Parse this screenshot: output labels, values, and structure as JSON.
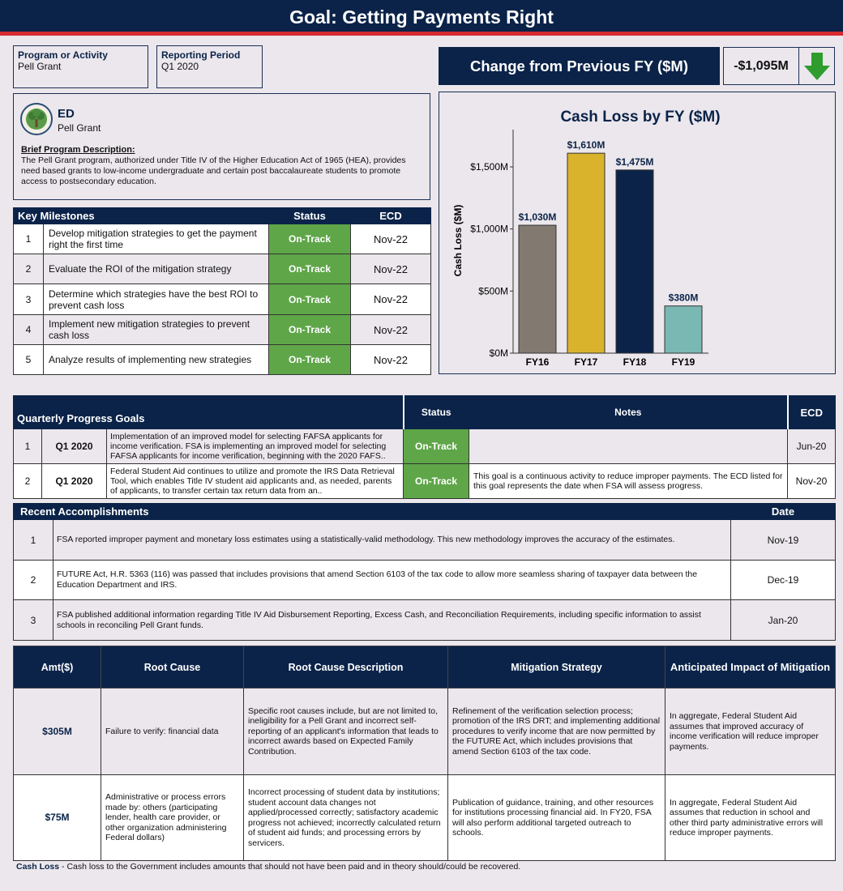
{
  "title": "Goal: Getting Payments Right",
  "program": {
    "label": "Program or Activity",
    "value": "Pell Grant"
  },
  "period": {
    "label": "Reporting Period",
    "value": "Q1 2020"
  },
  "change": {
    "label": "Change from Previous FY ($M)",
    "value": "-$1,095M",
    "direction": "down",
    "arrow_color": "#2e9d2e"
  },
  "agency": {
    "name": "ED",
    "program": "Pell Grant",
    "desc_label": "Brief Program Description:",
    "description": "The Pell Grant program, authorized under Title IV of the Higher Education Act of 1965 (HEA), provides need based grants to low-income undergraduate and certain post baccalaureate students to promote access to postsecondary education."
  },
  "milestones": {
    "headers": [
      "Key Milestones",
      "Status",
      "ECD"
    ],
    "rows": [
      {
        "num": "1",
        "text": "Develop mitigation strategies to get the payment right the first time",
        "status": "On-Track",
        "ecd": "Nov-22"
      },
      {
        "num": "2",
        "text": "Evaluate the ROI of the mitigation strategy",
        "status": "On-Track",
        "ecd": "Nov-22"
      },
      {
        "num": "3",
        "text": "Determine which strategies have the best ROI to prevent cash loss",
        "status": "On-Track",
        "ecd": "Nov-22"
      },
      {
        "num": "4",
        "text": "Implement new mitigation strategies to prevent cash loss",
        "status": "On-Track",
        "ecd": "Nov-22"
      },
      {
        "num": "5",
        "text": "Analyze results of implementing new strategies",
        "status": "On-Track",
        "ecd": "Nov-22"
      }
    ]
  },
  "chart_data": {
    "type": "bar",
    "title": "Cash Loss by FY ($M)",
    "ylabel": "Cash Loss ($M)",
    "categories": [
      "FY16",
      "FY17",
      "FY18",
      "FY19"
    ],
    "values": [
      1030,
      1610,
      1475,
      380
    ],
    "data_labels": [
      "$1,030M",
      "$1,610M",
      "$1,475M",
      "$380M"
    ],
    "colors": [
      "#827a70",
      "#d9b32c",
      "#0b2349",
      "#7ab8b4"
    ],
    "yticks": [
      0,
      500,
      1000,
      1500
    ],
    "ytick_labels": [
      "$0M",
      "$500M",
      "$1,000M",
      "$1,500M"
    ],
    "ylim": [
      0,
      1800
    ],
    "legend": "none"
  },
  "quarterly": {
    "headers": [
      "Quarterly Progress Goals",
      "Status",
      "Notes",
      "ECD"
    ],
    "rows": [
      {
        "num": "1",
        "quarter": "Q1 2020",
        "text": "Implementation of an improved model for selecting FAFSA applicants for income verification. FSA is implementing an improved model for selecting FAFSA applicants for income verification, beginning with the 2020 FAFS..",
        "status": "On-Track",
        "notes": "",
        "ecd": "Jun-20"
      },
      {
        "num": "2",
        "quarter": "Q1 2020",
        "text": "Federal Student Aid continues to utilize and promote the IRS Data Retrieval Tool, which enables Title IV student aid applicants and, as needed, parents of applicants, to transfer certain tax return data from an..",
        "status": "On-Track",
        "notes": "This goal is a continuous activity to reduce improper payments. The ECD listed for this goal represents the date when FSA will assess progress.",
        "ecd": "Nov-20"
      }
    ]
  },
  "accomplishments": {
    "headers": [
      "Recent  Accomplishments",
      "Date"
    ],
    "rows": [
      {
        "num": "1",
        "text": "FSA reported improper payment and monetary loss estimates using a statistically-valid methodology. This new methodology improves the accuracy of the estimates.",
        "date": "Nov-19"
      },
      {
        "num": "2",
        "text": "FUTURE Act, H.R. 5363 (116) was passed that includes provisions that amend Section 6103 of the tax code to allow more seamless sharing of taxpayer data between the Education Department and IRS.",
        "date": "Dec-19"
      },
      {
        "num": "3",
        "text": "FSA published additional information regarding Title IV Aid Disbursement Reporting, Excess Cash, and Reconciliation Requirements, including specific information to assist schools in reconciling Pell Grant funds.",
        "date": "Jan-20"
      }
    ]
  },
  "root_causes": {
    "headers": [
      "Amt($)",
      "Root Cause",
      "Root Cause Description",
      "Mitigation Strategy",
      "Anticipated Impact of Mitigation"
    ],
    "rows": [
      {
        "amt": "$305M",
        "cause": "Failure to verify: financial data",
        "description": "Specific root causes include, but are not limited to, ineligibility for a Pell Grant and incorrect self-reporting of an applicant's information that leads to incorrect awards based on Expected Family Contribution.",
        "mitigation": "Refinement of the verification selection process; promotion of the IRS DRT; and implementing additional procedures to verify income that are now permitted by the FUTURE Act, which includes provisions that amend Section 6103 of the tax code.",
        "impact": "In aggregate, Federal Student Aid assumes that improved accuracy of income verification will reduce improper payments."
      },
      {
        "amt": "$75M",
        "cause": "Administrative or process errors made by: others (participating lender, health care provider, or other organization administering Federal dollars)",
        "description": "Incorrect processing of student data by institutions; student account data changes not applied/processed correctly; satisfactory academic progress not achieved; incorrectly calculated return of student aid funds; and processing errors by servicers.",
        "mitigation": "Publication of guidance, training, and other resources for institutions processing financial aid. In FY20, FSA will also perform additional targeted outreach to schools.",
        "impact": "In aggregate, Federal Student Aid assumes that reduction in school and other third party administrative errors will reduce improper payments."
      }
    ]
  },
  "footnote": {
    "term": "Cash Loss",
    "text": " - Cash loss to the Government includes amounts that should not have been paid and in theory should/could be recovered."
  }
}
